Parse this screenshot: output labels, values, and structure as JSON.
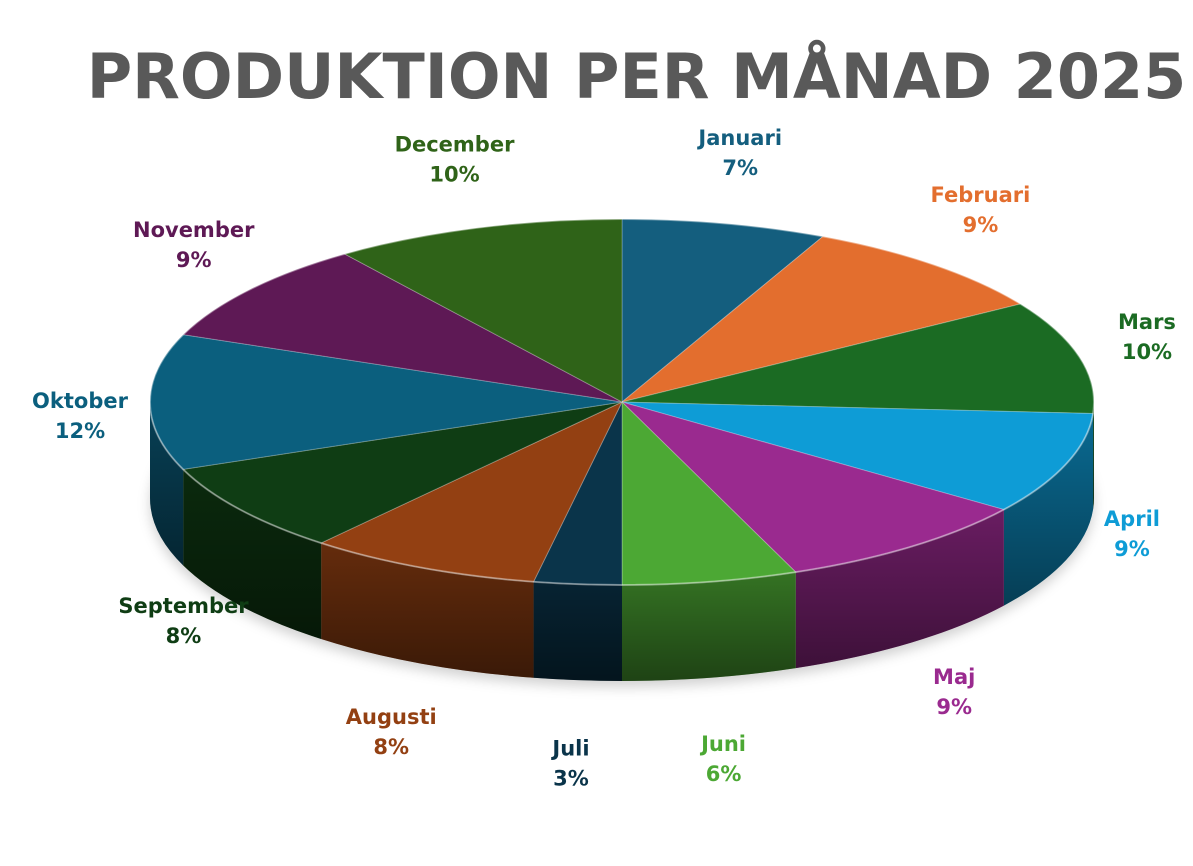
{
  "chart_data": {
    "type": "pie",
    "title": "PRODUKTION PER MÅNAD 2025",
    "categories": [
      "Januari",
      "Februari",
      "Mars",
      "April",
      "Maj",
      "Juni",
      "Juli",
      "Augusti",
      "September",
      "Oktober",
      "November",
      "December"
    ],
    "values": [
      7,
      9,
      10,
      9,
      9,
      6,
      3,
      8,
      8,
      12,
      9,
      10
    ],
    "value_labels": [
      "7%",
      "9%",
      "10%",
      "9%",
      "9%",
      "6%",
      "3%",
      "8%",
      "8%",
      "12%",
      "9%",
      "10%"
    ],
    "colors": [
      "#145E7E",
      "#E36E2E",
      "#1B6B23",
      "#0E9CD6",
      "#9A2A8F",
      "#4CA834",
      "#0A344A",
      "#934012",
      "#0F3D14",
      "#0B5F7E",
      "#5E1955",
      "#2F6318"
    ],
    "label_colors": [
      "#145E7E",
      "#E36E2E",
      "#1B6B23",
      "#0E9CD6",
      "#9A2A8F",
      "#4CA834",
      "#0A344A",
      "#934012",
      "#0F3D14",
      "#0B5F7E",
      "#5E1955",
      "#2F6318"
    ],
    "style": "3d-pie",
    "legend": "none"
  }
}
